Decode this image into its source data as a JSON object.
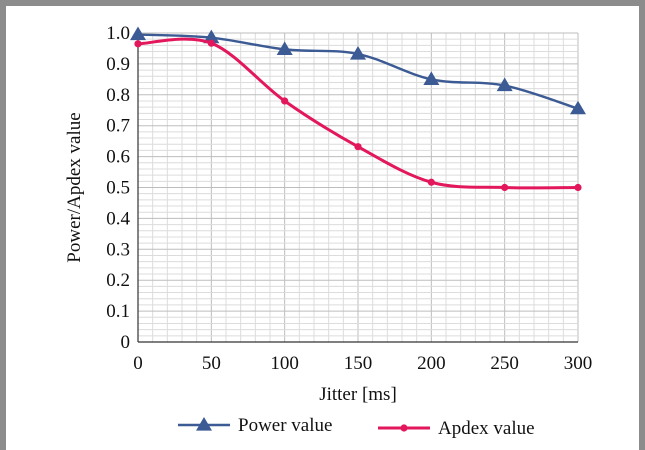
{
  "chart_data": {
    "type": "line",
    "xlabel": "Jitter [ms]",
    "ylabel": "Power/Apdex value",
    "x": [
      0,
      50,
      100,
      150,
      200,
      250,
      300
    ],
    "xlim": [
      0,
      300
    ],
    "ylim": [
      0,
      1.0
    ],
    "x_ticks": [
      "0",
      "50",
      "100",
      "150",
      "200",
      "250",
      "300"
    ],
    "y_ticks": [
      "0",
      "0.1",
      "0.2",
      "0.3",
      "0.4",
      "0.5",
      "0.6",
      "0.7",
      "0.8",
      "0.9",
      "1.0"
    ],
    "grid": true,
    "legend_position": "bottom",
    "series": [
      {
        "name": "Power value",
        "values": [
          0.995,
          0.985,
          0.947,
          0.932,
          0.85,
          0.83,
          0.755
        ],
        "color": "#3c5a94",
        "marker": "triangle"
      },
      {
        "name": "Apdex value",
        "values": [
          0.965,
          0.967,
          0.78,
          0.632,
          0.517,
          0.5,
          0.5
        ],
        "color": "#e3175b",
        "marker": "circle"
      }
    ]
  }
}
